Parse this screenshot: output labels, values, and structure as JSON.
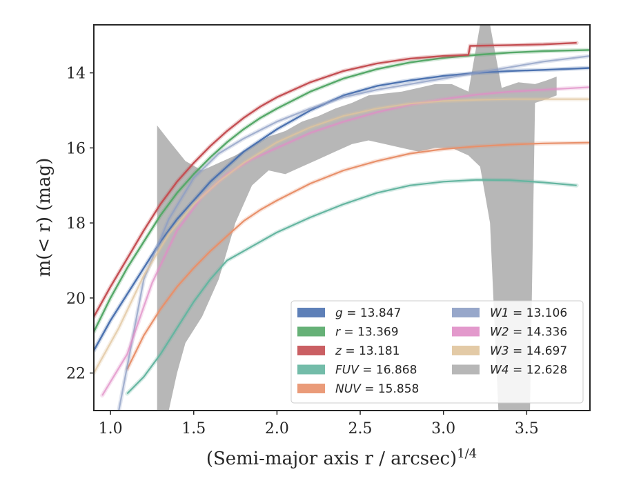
{
  "chart_data": {
    "type": "line",
    "xlabel_main": "(Semi-major axis r / arcsec)",
    "xlabel_sup": "1/4",
    "ylabel": "m(< r) (mag)",
    "xlim": [
      0.9,
      3.88
    ],
    "ylim": [
      23.0,
      12.72
    ],
    "y_inverted": true,
    "x_ticks": [
      "1.0",
      "1.5",
      "2.0",
      "2.5",
      "3.0",
      "3.5"
    ],
    "y_ticks": [
      "14",
      "16",
      "18",
      "20",
      "22"
    ],
    "legend_position": "lower-right",
    "series": [
      {
        "name": "g = 13.847",
        "label_italic": "g",
        "label_value": "= 13.847",
        "color": "#4c72b0",
        "x": [
          0.9,
          1.0,
          1.1,
          1.2,
          1.3,
          1.4,
          1.5,
          1.6,
          1.7,
          1.8,
          1.9,
          2.0,
          2.2,
          2.4,
          2.6,
          2.8,
          3.0,
          3.2,
          3.4,
          3.6,
          3.88
        ],
        "y": [
          21.4,
          20.6,
          19.9,
          19.2,
          18.5,
          17.9,
          17.4,
          16.9,
          16.5,
          16.1,
          15.8,
          15.5,
          15.0,
          14.6,
          14.35,
          14.2,
          14.08,
          14.0,
          13.95,
          13.92,
          13.87
        ]
      },
      {
        "name": "r = 13.369",
        "label_italic": "r",
        "label_value": "= 13.369",
        "color": "#55a868",
        "x": [
          0.9,
          1.0,
          1.1,
          1.2,
          1.3,
          1.4,
          1.5,
          1.6,
          1.7,
          1.8,
          1.9,
          2.0,
          2.2,
          2.4,
          2.6,
          2.8,
          3.0,
          3.2,
          3.4,
          3.6,
          3.88
        ],
        "y": [
          20.9,
          20.0,
          19.2,
          18.5,
          17.8,
          17.2,
          16.7,
          16.25,
          15.85,
          15.5,
          15.2,
          14.95,
          14.5,
          14.15,
          13.9,
          13.72,
          13.6,
          13.52,
          13.46,
          13.42,
          13.39
        ]
      },
      {
        "name": "z = 13.181",
        "label_italic": "z",
        "label_value": "= 13.181",
        "color": "#c44e52",
        "x": [
          0.9,
          1.0,
          1.1,
          1.2,
          1.3,
          1.4,
          1.5,
          1.6,
          1.7,
          1.8,
          1.9,
          2.0,
          2.2,
          2.4,
          2.6,
          2.8,
          3.0,
          3.15,
          3.16,
          3.4,
          3.6,
          3.8
        ],
        "y": [
          20.5,
          19.7,
          18.95,
          18.2,
          17.5,
          16.9,
          16.4,
          15.95,
          15.55,
          15.2,
          14.9,
          14.65,
          14.25,
          13.95,
          13.75,
          13.62,
          13.55,
          13.52,
          13.28,
          13.26,
          13.24,
          13.2
        ]
      },
      {
        "name": "FUV = 16.868",
        "label_italic": "FUV",
        "label_value": "= 16.868",
        "color": "#64b5a0",
        "x": [
          1.1,
          1.2,
          1.3,
          1.4,
          1.5,
          1.6,
          1.7,
          1.8,
          2.0,
          2.2,
          2.4,
          2.6,
          2.8,
          3.0,
          3.2,
          3.4,
          3.6,
          3.8
        ],
        "y": [
          22.55,
          22.1,
          21.5,
          20.8,
          20.1,
          19.5,
          19.0,
          18.75,
          18.25,
          17.85,
          17.5,
          17.2,
          17.0,
          16.9,
          16.85,
          16.86,
          16.92,
          17.0
        ]
      },
      {
        "name": "NUV = 15.858",
        "label_italic": "NUV",
        "label_value": "= 15.858",
        "color": "#e8906a",
        "x": [
          1.1,
          1.2,
          1.3,
          1.4,
          1.5,
          1.6,
          1.7,
          1.8,
          1.9,
          2.0,
          2.2,
          2.4,
          2.6,
          2.8,
          3.0,
          3.2,
          3.4,
          3.6,
          3.88
        ],
        "y": [
          21.9,
          21.0,
          20.3,
          19.7,
          19.2,
          18.75,
          18.35,
          17.95,
          17.65,
          17.4,
          16.95,
          16.6,
          16.35,
          16.15,
          16.03,
          15.96,
          15.91,
          15.88,
          15.86
        ]
      },
      {
        "name": "W1 = 13.106",
        "label_italic": "W1",
        "label_value": "= 13.106",
        "color": "#8c9dc4",
        "x": [
          1.05,
          1.2,
          1.35,
          1.5,
          1.65,
          1.8,
          2.0,
          2.2,
          2.4,
          2.6,
          2.8,
          3.0,
          3.2,
          3.4,
          3.6,
          3.88
        ],
        "y": [
          23.0,
          19.5,
          17.9,
          16.8,
          16.15,
          15.75,
          15.3,
          14.95,
          14.65,
          14.45,
          14.3,
          14.15,
          14.0,
          13.85,
          13.7,
          13.55
        ]
      },
      {
        "name": "W2 = 14.336",
        "label_italic": "W2",
        "label_value": "= 14.336",
        "color": "#e08ec6",
        "x": [
          0.95,
          1.1,
          1.25,
          1.4,
          1.55,
          1.7,
          1.85,
          2.0,
          2.2,
          2.4,
          2.6,
          2.8,
          3.0,
          3.2,
          3.4,
          3.6,
          3.88
        ],
        "y": [
          22.6,
          21.5,
          19.6,
          18.2,
          17.3,
          16.7,
          16.3,
          16.0,
          15.6,
          15.3,
          15.05,
          14.85,
          14.7,
          14.58,
          14.5,
          14.45,
          14.38
        ]
      },
      {
        "name": "W3 = 14.697",
        "label_italic": "W3",
        "label_value": "= 14.697",
        "color": "#e0c49c",
        "x": [
          0.9,
          1.05,
          1.2,
          1.35,
          1.5,
          1.65,
          1.8,
          2.0,
          2.2,
          2.4,
          2.6,
          2.8,
          3.0,
          3.2,
          3.4,
          3.6,
          3.88
        ],
        "y": [
          22.0,
          20.8,
          19.4,
          18.3,
          17.5,
          16.9,
          16.4,
          15.85,
          15.45,
          15.15,
          14.95,
          14.82,
          14.75,
          14.72,
          14.7,
          14.7,
          14.7
        ]
      },
      {
        "name": "W4 = 12.628",
        "label_italic": "W4",
        "label_value": "= 12.628",
        "color": "#b3b3b3",
        "band_upper_x": [
          1.28,
          1.35,
          1.45,
          1.55,
          1.65,
          1.75,
          1.85,
          1.95,
          2.05,
          2.15,
          2.25,
          2.35,
          2.45,
          2.55,
          2.65,
          2.75,
          2.85,
          2.95,
          3.05,
          3.15,
          3.22,
          3.28,
          3.35,
          3.45,
          3.55,
          3.62,
          3.68
        ],
        "band_upper_y": [
          15.4,
          15.8,
          16.35,
          16.6,
          16.4,
          16.2,
          15.95,
          15.7,
          15.55,
          15.3,
          15.15,
          14.95,
          14.8,
          14.6,
          14.55,
          14.5,
          14.4,
          14.3,
          14.3,
          14.5,
          12.72,
          12.72,
          14.4,
          14.25,
          14.3,
          14.2,
          14.1
        ],
        "band_lower_x": [
          3.68,
          3.62,
          3.55,
          3.52,
          3.45,
          3.35,
          3.33,
          3.28,
          3.22,
          3.15,
          3.05,
          2.95,
          2.85,
          2.75,
          2.65,
          2.55,
          2.45,
          2.35,
          2.25,
          2.15,
          2.05,
          1.95,
          1.85,
          1.75,
          1.65,
          1.55,
          1.45,
          1.4,
          1.35,
          1.28
        ],
        "band_lower_y": [
          14.6,
          14.7,
          14.8,
          23.0,
          23.0,
          23.0,
          23.0,
          18.0,
          16.5,
          16.2,
          16.0,
          16.0,
          16.1,
          16.0,
          15.9,
          15.8,
          15.9,
          16.1,
          16.3,
          16.5,
          16.7,
          16.6,
          17.0,
          18.0,
          19.5,
          20.5,
          21.2,
          22.0,
          23.0,
          23.0
        ]
      }
    ]
  }
}
